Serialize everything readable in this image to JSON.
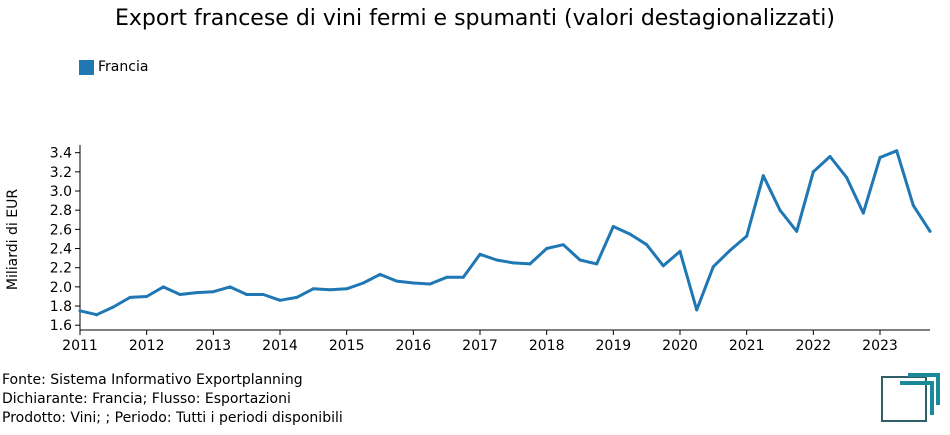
{
  "title": "Export francese di vini fermi e spumanti (valori destagionalizzati)",
  "colors": {
    "series": "#1f77b4",
    "logo": "#1a8a99"
  },
  "logo_icon": "exportplanning-logo-icon",
  "footer": {
    "line1": "Fonte: Sistema Informativo Exportplanning",
    "line2": "Dichiarante: Francia; Flusso: Esportazioni",
    "line3": "Prodotto: Vini; ; Periodo: Tutti i periodi disponibili"
  },
  "chart_data": {
    "type": "line",
    "title": "Export francese di vini fermi e spumanti (valori destagionalizzati)",
    "xlabel": "",
    "ylabel": "Miliardi di EUR",
    "xlim": [
      2011.0,
      2023.75
    ],
    "ylim": [
      1.55,
      3.48
    ],
    "yticks": [
      1.6,
      1.8,
      2.0,
      2.2,
      2.4,
      2.6,
      2.8,
      3.0,
      3.2,
      3.4
    ],
    "ytick_labels": [
      "1.6",
      "1.8",
      "2.0",
      "2.2",
      "2.4",
      "2.6",
      "2.8",
      "3.0",
      "3.2",
      "3.4"
    ],
    "xticks": [
      2011,
      2012,
      2013,
      2014,
      2015,
      2016,
      2017,
      2018,
      2019,
      2020,
      2021,
      2022,
      2023
    ],
    "xtick_labels": [
      "2011",
      "2012",
      "2013",
      "2014",
      "2015",
      "2016",
      "2017",
      "2018",
      "2019",
      "2020",
      "2021",
      "2022",
      "2023"
    ],
    "grid": false,
    "legend_position": "top-left",
    "series": [
      {
        "name": "Francia",
        "color": "#1f77b4",
        "x": [
          2011.0,
          2011.25,
          2011.5,
          2011.75,
          2012.0,
          2012.25,
          2012.5,
          2012.75,
          2013.0,
          2013.25,
          2013.5,
          2013.75,
          2014.0,
          2014.25,
          2014.5,
          2014.75,
          2015.0,
          2015.25,
          2015.5,
          2015.75,
          2016.0,
          2016.25,
          2016.5,
          2016.75,
          2017.0,
          2017.25,
          2017.5,
          2017.75,
          2018.0,
          2018.25,
          2018.5,
          2018.75,
          2019.0,
          2019.25,
          2019.5,
          2019.75,
          2020.0,
          2020.25,
          2020.5,
          2020.75,
          2021.0,
          2021.25,
          2021.5,
          2021.75,
          2022.0,
          2022.25,
          2022.5,
          2022.75,
          2023.0,
          2023.25,
          2023.5,
          2023.75
        ],
        "values": [
          1.75,
          1.71,
          1.79,
          1.89,
          1.9,
          2.0,
          1.92,
          1.94,
          1.95,
          2.0,
          1.92,
          1.92,
          1.86,
          1.89,
          1.98,
          1.97,
          1.98,
          2.04,
          2.13,
          2.06,
          2.04,
          2.03,
          2.1,
          2.1,
          2.34,
          2.28,
          2.25,
          2.24,
          2.4,
          2.44,
          2.28,
          2.24,
          2.63,
          2.55,
          2.44,
          2.22,
          2.37,
          1.76,
          2.21,
          2.38,
          2.53,
          3.16,
          2.8,
          2.58,
          3.2,
          3.36,
          3.14,
          2.77,
          3.35,
          3.42,
          2.85,
          2.58
        ]
      }
    ]
  }
}
